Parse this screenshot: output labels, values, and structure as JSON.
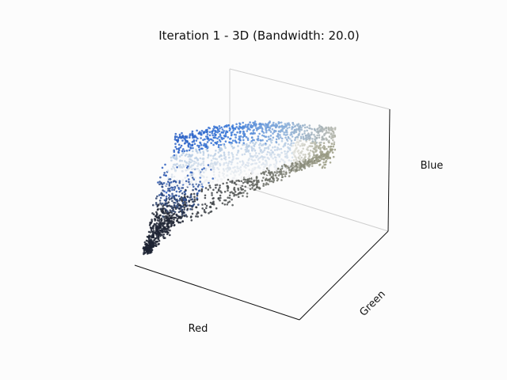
{
  "chart_data": {
    "type": "scatter",
    "projection": "3d",
    "title": "Iteration 1 - 3D (Bandwidth: 20.0)",
    "xlabel": "Red",
    "ylabel": "Green",
    "zlabel": "Blue",
    "grid": false,
    "ticks": false,
    "legend": "none",
    "point_count": 2600,
    "colors": {
      "dark": "#2a2f3a",
      "mid_blue": "#2b5fc4",
      "bright_blue": "#3a79d8",
      "light_blue": "#8fb2d9",
      "white": "#f4f4f4",
      "grey": "#b5b5a8",
      "olive_grey": "#9c9d86",
      "background": "#fcfcfc"
    }
  }
}
